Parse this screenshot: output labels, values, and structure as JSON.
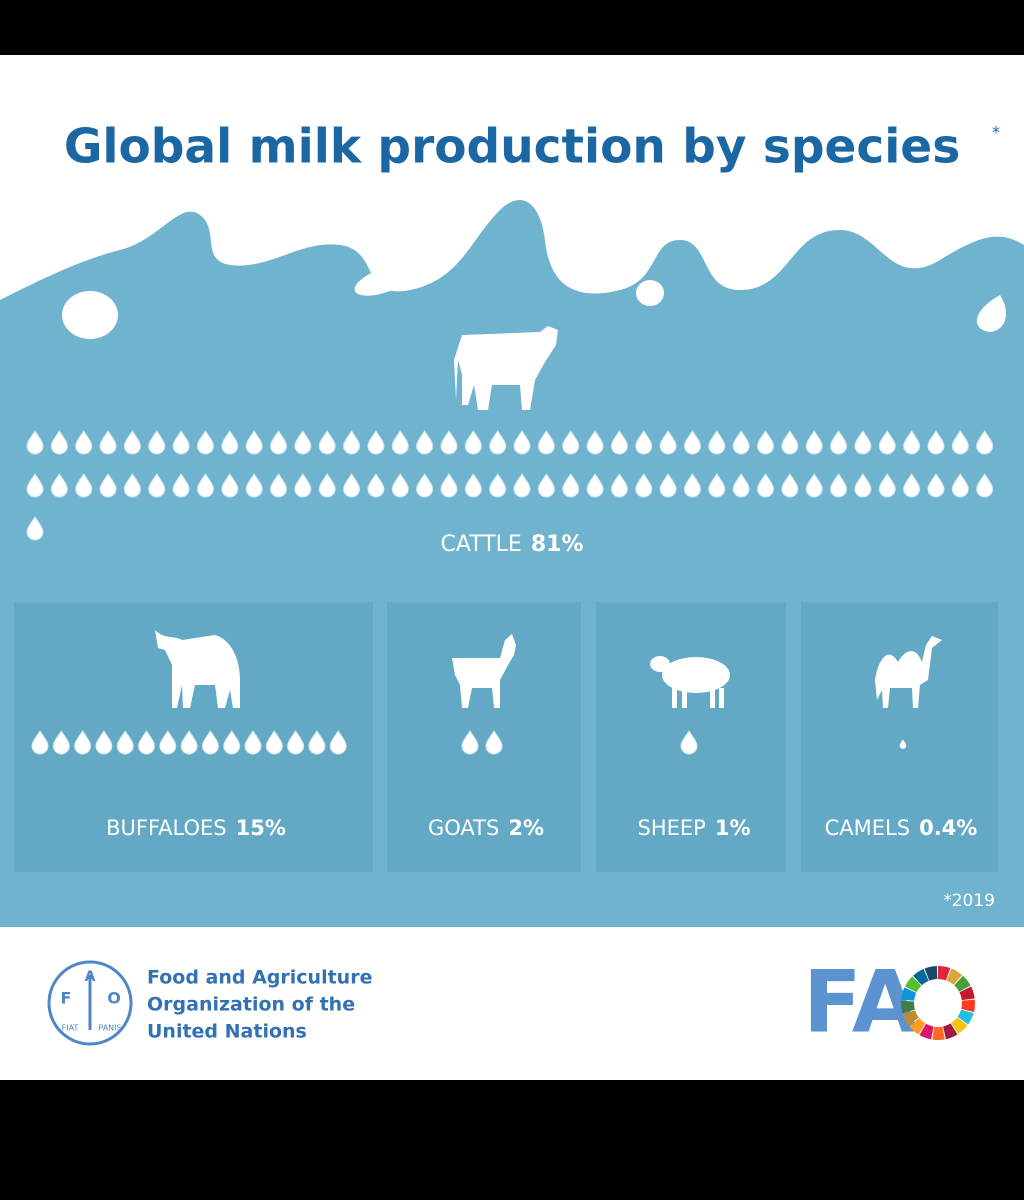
{
  "chart_data": {
    "type": "pictogram",
    "title": "Global milk production by species",
    "title_note": "*",
    "categories": [
      "CATTLE",
      "BUFFALOES",
      "GOATS",
      "SHEEP",
      "CAMELS"
    ],
    "values": [
      81,
      15,
      2,
      1,
      0.4
    ],
    "value_labels": [
      "81%",
      "15%",
      "2%",
      "1%",
      "0.4%"
    ],
    "color": "#ffffff",
    "note": "*2019"
  },
  "footer": {
    "org_lines": [
      "Food and Agriculture",
      "Organization of the",
      "United Nations"
    ],
    "emblem": [
      "F",
      "A",
      "O"
    ],
    "motto": [
      "FIAT",
      "PANIS"
    ],
    "logo": "FA"
  }
}
